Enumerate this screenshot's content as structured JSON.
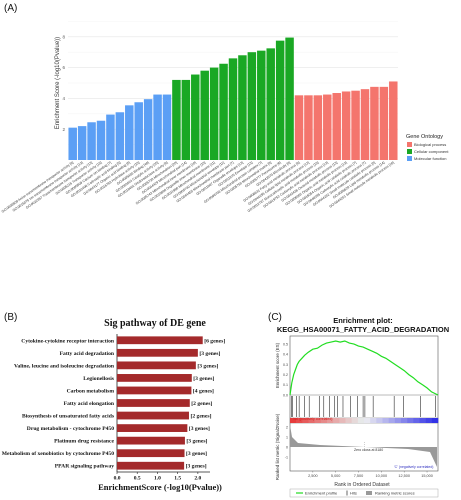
{
  "panel_labels": {
    "a": "(A)",
    "b": "(B)",
    "c": "(C)"
  },
  "chart_data": [
    {
      "type": "bar",
      "ylabel": "Enrichment Score (-log10(Pvalue))",
      "ylim": [
        0,
        10
      ],
      "yticks": [
        2,
        4,
        6,
        8
      ],
      "legend_title": "Gene Ontology",
      "grid": true,
      "legend_position": "right",
      "colors": {
        "Biological process": "#f4756d",
        "Cellular component": "#1aa824",
        "Molecular function": "#5b9ff5"
      },
      "groups": [
        {
          "name": "Molecular function",
          "categories": [
            "GO:0008509 Anion transmembrane transporter activity [6]",
            "GO:0015075 Ion transmembrane transporter activity [13]",
            "GO:0022857 Transmembrane transporter activity [13]",
            "GO:0005215 Transporter activity [15]",
            "GO:0005509 Calcium ion binding [7]",
            "GO:0031406 Carboxylic acid binding [5]",
            "GO:0043177 Organic acid binding [5]",
            "GO:0016788 Hydrolase activity [10]",
            "GO:0005488 Binding [40]",
            "GO:0003824 Catalytic activity [25]",
            "GO:0016491 Oxidoreductase activity [9]"
          ],
          "values": [
            2.1,
            2.2,
            2.45,
            2.55,
            2.95,
            3.1,
            3.55,
            3.75,
            3.95,
            4.25,
            4.25
          ]
        },
        {
          "name": "Cellular component",
          "categories": [
            "GO:0005739 Mitochondrion [20]",
            "GO:0044429 Mitochondrial part [14]",
            "GO:0005743 Mitochondrial inner membrane [10]",
            "GO:0019866 Organelle inner membrane [10]",
            "GO:0031966 Mitochondrial membrane [11]",
            "GO:0005740 Mitochondrial envelope [11]",
            "GO:0044455 Mitochondrial membrane part [7]",
            "GO:0031967 Organelle envelope [13]",
            "GO:0031975 Envelope [13]",
            "GO:0098798 Mitochondrial protein complex [7]",
            "GO:0005759 Mitochondrial matrix [9]",
            "GO:0005777 Peroxisome [6]",
            "GO:0042579 Microbody [6]"
          ],
          "values": [
            5.2,
            5.2,
            5.55,
            5.8,
            6.0,
            6.25,
            6.6,
            6.8,
            7.0,
            7.1,
            7.25,
            7.75,
            7.95
          ]
        },
        {
          "name": "Biological process",
          "categories": [
            "GO:0006631 Fatty acid metabolic process [9]",
            "GO:0044255 Cellular lipid metabolic process [12]",
            "GO:0032787 Monocarboxylic acid metabolic process [10]",
            "GO:0019752 Carboxylic acid metabolic process [13]",
            "GO:0043436 Oxoacid metabolic process [13]",
            "GO:0006082 Organic acid metabolic process [13]",
            "GO:0016054 Organic acid catabolic process [7]",
            "GO:0046395 Carboxylic acid catabolic process [7]",
            "GO:0044282 Small molecule catabolic process [8]",
            "GO:0006629 Lipid metabolic process [14]",
            "GO:0044281 Small molecule metabolic process [16]"
          ],
          "values": [
            4.2,
            4.2,
            4.2,
            4.25,
            4.35,
            4.45,
            4.5,
            4.6,
            4.75,
            4.75,
            5.1
          ]
        }
      ]
    },
    {
      "type": "bar",
      "orientation": "horizontal",
      "title": "Sig pathway of DE gene",
      "xlabel": "EnrichmentScore (-log10(Pvalue))",
      "xlim": [
        0,
        2.3
      ],
      "xticks": [
        "0.0",
        "0.5",
        "1.0",
        "1.5",
        "2.0"
      ],
      "color": "#a42a2b",
      "categories": [
        "Cytokine-cytokine receptor interaction",
        "Fatty acid degradation",
        "Valine, leucine and isoleucine degradation",
        "Legionellosis",
        "Carbon metabolism",
        "Fatty acid elongation",
        "Biosynthesis of unsaturated fatty acids",
        "Drug metabolism - cytochrome P450",
        "Platinum drug resistance",
        "Metabolism of xenobiotics by cytochrome P450",
        "PPAR signaling pathway"
      ],
      "values": [
        2.12,
        2.0,
        1.95,
        1.85,
        1.84,
        1.8,
        1.78,
        1.74,
        1.68,
        1.67,
        1.66
      ],
      "labels": [
        "[6 genes]",
        "[3 genes]",
        "[3 genes]",
        "[3 genes]",
        "[4 genes]",
        "[2 genes]",
        "[2 genes]",
        "[3 genes]",
        "[3 genes]",
        "[3 genes]",
        "[3 genes]"
      ]
    },
    {
      "type": "line",
      "title": "Enrichment plot:",
      "subtitle": "KEGG_HSA00071_FATTY_ACID_DEGRADATION",
      "ylabel_top": "Enrichment score (ES)",
      "ylabel_bottom": "Ranked list metric (Signal2Noise)",
      "xlabel": "Rank in Ordered Dataset",
      "ylim_top": [
        0,
        0.55
      ],
      "yticks_top": [
        "0.0",
        "0.1",
        "0.2",
        "0.3",
        "0.4",
        "0.5"
      ],
      "yticks_bottom": [
        "2",
        "1",
        "0",
        "-1"
      ],
      "xticks": [
        "2,500",
        "5,000",
        "7,500",
        "10,000",
        "12,500",
        "15,000"
      ],
      "x": [
        0,
        200,
        400,
        600,
        800,
        1000,
        1300,
        1600,
        2000,
        2500,
        3000,
        3500,
        4000,
        4500,
        5000,
        5500,
        6000,
        6500,
        7000,
        7500,
        8000,
        8500,
        9000,
        9500,
        10000,
        10500,
        11000,
        11500,
        12000,
        12500,
        13000,
        13500,
        14000,
        14500,
        15000,
        15500,
        16200
      ],
      "values": [
        0.0,
        0.12,
        0.2,
        0.25,
        0.3,
        0.33,
        0.36,
        0.39,
        0.42,
        0.45,
        0.46,
        0.49,
        0.51,
        0.52,
        0.53,
        0.52,
        0.53,
        0.51,
        0.5,
        0.48,
        0.47,
        0.45,
        0.43,
        0.41,
        0.38,
        0.36,
        0.33,
        0.3,
        0.27,
        0.24,
        0.2,
        0.17,
        0.13,
        0.1,
        0.07,
        0.03,
        0.0
      ],
      "hits": [
        150,
        300,
        700,
        1000,
        1600,
        2100,
        3200,
        3700,
        4300,
        4900,
        5200,
        5800,
        6600,
        7400,
        8000,
        8200,
        9100,
        11400,
        12400,
        14300,
        15900
      ],
      "annotations": [
        "'na' (positively correlated)",
        "Zero cross at 8180",
        "'C' (negatively correlated)"
      ],
      "legend": [
        "Enrichment profile",
        "Hits",
        "Ranking metric scores"
      ],
      "colors": {
        "profile": "#22dd22",
        "hits": "#000000",
        "metric": "#999999"
      }
    }
  ]
}
